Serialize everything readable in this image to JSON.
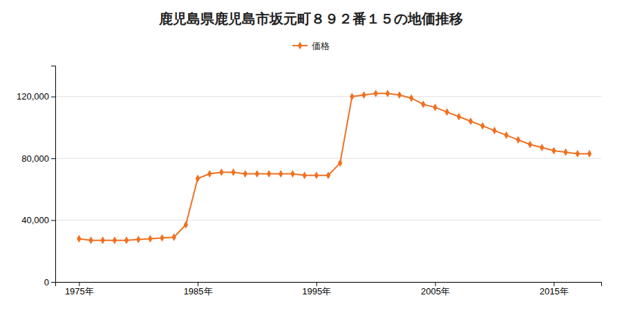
{
  "chart_data": {
    "type": "line",
    "title": "鹿児島県鹿児島市坂元町８９２番１５の地価推移",
    "x": [
      1975,
      1976,
      1977,
      1978,
      1979,
      1980,
      1981,
      1982,
      1983,
      1984,
      1985,
      1986,
      1987,
      1988,
      1989,
      1990,
      1991,
      1992,
      1993,
      1994,
      1995,
      1996,
      1997,
      1998,
      1999,
      2000,
      2001,
      2002,
      2003,
      2004,
      2005,
      2006,
      2007,
      2008,
      2009,
      2010,
      2011,
      2012,
      2013,
      2014,
      2015,
      2016,
      2017,
      2018
    ],
    "series": [
      {
        "name": "価格",
        "color": "#f07020",
        "marker": "diamond",
        "line_style": "solid",
        "values": [
          28000,
          27000,
          27000,
          27000,
          27000,
          27500,
          28000,
          28500,
          29000,
          37000,
          67000,
          70000,
          71000,
          71000,
          70000,
          70000,
          70000,
          70000,
          70000,
          69000,
          69000,
          69000,
          77000,
          120000,
          121000,
          122000,
          122000,
          121000,
          119000,
          115000,
          113000,
          110000,
          107000,
          104000,
          101000,
          98000,
          95000,
          92000,
          89000,
          87000,
          85000,
          84000,
          83000,
          83000
        ]
      }
    ],
    "xlim": [
      1973,
      2019
    ],
    "xticks": [
      {
        "value": 1975,
        "label": "1975年"
      },
      {
        "value": 1985,
        "label": "1985年"
      },
      {
        "value": 1995,
        "label": "1995年"
      },
      {
        "value": 2005,
        "label": "2005年"
      },
      {
        "value": 2015,
        "label": "2015年"
      }
    ],
    "ylim": [
      0,
      140000
    ],
    "yticks": [
      0,
      {
        "value": 40000,
        "label": "40,000"
      },
      {
        "value": 80000,
        "label": "80,000"
      },
      {
        "value": 120000,
        "label": "120,000"
      }
    ],
    "grid": true,
    "legend": "top"
  }
}
